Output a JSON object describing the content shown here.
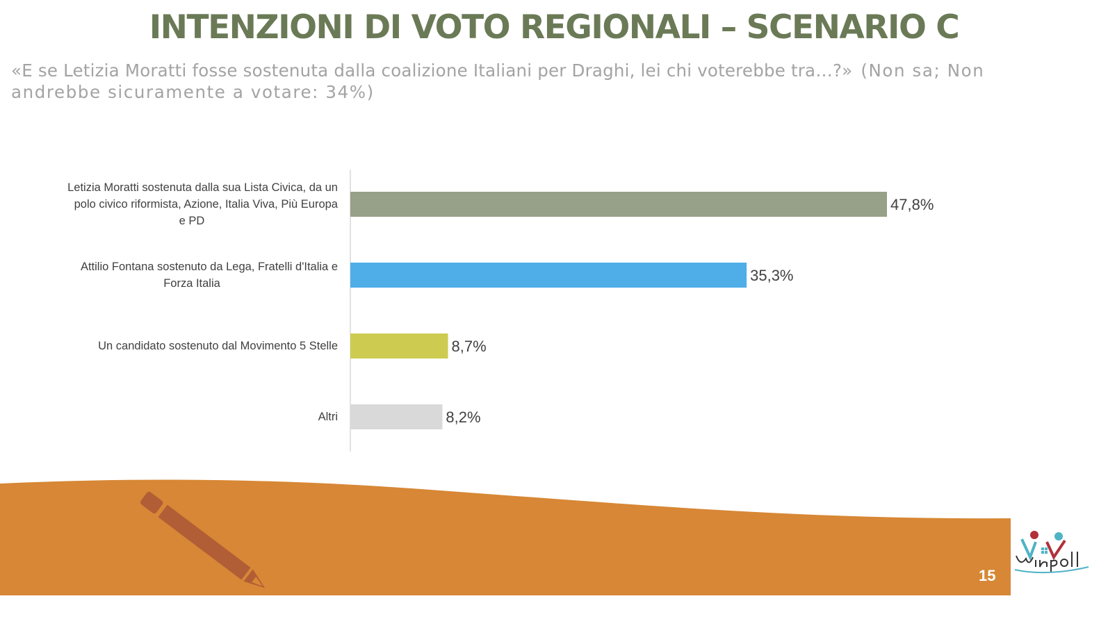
{
  "slide": {
    "title": "INTENZIONI DI VOTO REGIONALI – SCENARIO C",
    "question": "«E se Letizia Moratti fosse sostenuta dalla coalizione Italiani per Draghi, lei chi voterebbe tra…?»",
    "note": "(Non sa; Non andrebbe sicuramente a votare: 34%)",
    "page_number": "15"
  },
  "chart_data": {
    "type": "bar",
    "orientation": "horizontal",
    "categories": [
      "Letizia Moratti sostenuta dalla sua Lista Civica, da un polo civico riformista, Azione, Italia Viva, Più Europa e PD",
      "Attilio Fontana sostenuto da Lega, Fratelli d'Italia e Forza Italia",
      "Un candidato sostenuto dal Movimento 5 Stelle",
      "Altri"
    ],
    "category_lines": [
      [
        "Letizia Moratti sostenuta dalla sua Lista Civica, da un",
        "polo civico riformista, Azione, Italia Viva, Più Europa",
        "e PD"
      ],
      [
        "Attilio Fontana sostenuto da Lega, Fratelli d'Italia e",
        "Forza Italia"
      ],
      [
        "Un candidato sostenuto dal Movimento 5 Stelle"
      ],
      [
        "Altri"
      ]
    ],
    "values": [
      47.8,
      35.3,
      8.7,
      8.2
    ],
    "value_labels": [
      "47,8%",
      "35,3%",
      "8,7%",
      "8,2%"
    ],
    "colors": [
      "#97a088",
      "#4faee8",
      "#cdcc50",
      "#d9d9d9"
    ],
    "xlim": [
      0,
      60
    ],
    "grid": false,
    "legend": "none"
  },
  "footer": {
    "band_color": "#d78735",
    "icon": "pencil-icon",
    "logo_text": "Winpoll"
  }
}
